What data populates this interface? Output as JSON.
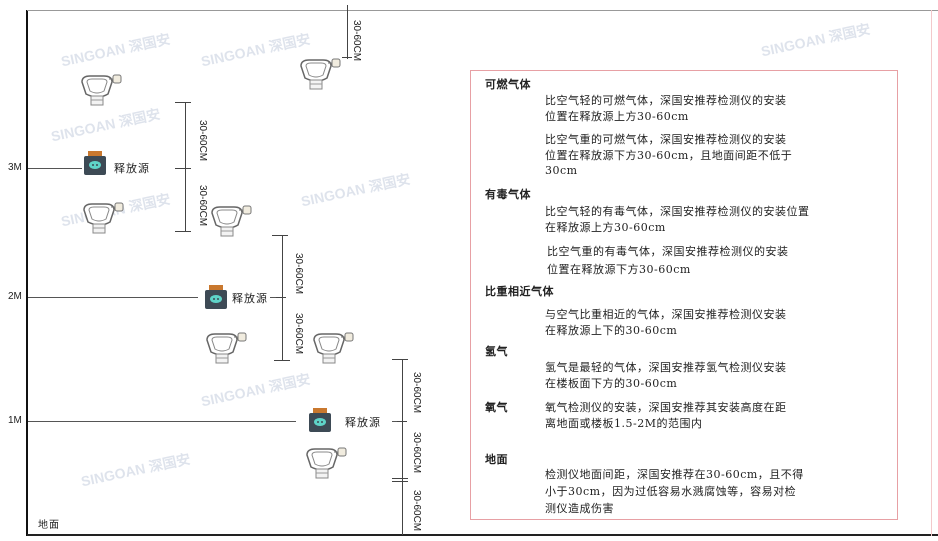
{
  "watermark": "SINGOAN 深国安",
  "levels": {
    "l3": "3M",
    "l2": "2M",
    "l1": "1M",
    "ground": "地面"
  },
  "source_label": "释放源",
  "dim_label": "30-60CM",
  "panel": {
    "combustible": {
      "title": "可燃气体",
      "p1": [
        "比空气轻的可燃气体，深国安推荐检测仪的安装",
        "位置在释放源上方30-60cm"
      ],
      "p2": [
        "比空气重的可燃气体，深国安推荐检测仪的安装",
        "位置在释放源下方30-60cm，且地面间距不低于",
        "30cm"
      ]
    },
    "toxic": {
      "title": "有毒气体",
      "p1": [
        "比空气轻的有毒气体，深国安推荐检测仪的安装位置",
        "在释放源上方30-60cm"
      ],
      "p2": [
        "比空气重的有毒气体，深国安推荐检测仪的安装",
        "位置在释放源下方30-60cm"
      ]
    },
    "similar": {
      "title": "比重相近气体",
      "p1": [
        "与空气比重相近的气体，深国安推荐检测仪安装",
        "在释放源上下的30-60cm"
      ]
    },
    "hydrogen": {
      "title": "氢气",
      "p1": [
        "氢气是最轻的气体，深国安推荐氢气检测仪安装",
        "在楼板面下方的30-60cm"
      ]
    },
    "oxygen": {
      "title": "氧气",
      "p1": [
        "氧气检测仪的安装，深国安推荐其安装高度在距",
        "离地面或楼板1.5-2M的范围内"
      ]
    },
    "ground": {
      "title": "地面",
      "p1": [
        "检测仪地面间距，深国安推荐在30-60cm，且不得",
        "小于30cm，因为过低容易水溅腐蚀等，容易对检",
        "测仪造成伤害"
      ]
    }
  },
  "colors": {
    "border": "#e7a0a4",
    "source_body": "#3d4a55",
    "source_cap": "#c9782e",
    "source_face": "#5fd3c8"
  }
}
